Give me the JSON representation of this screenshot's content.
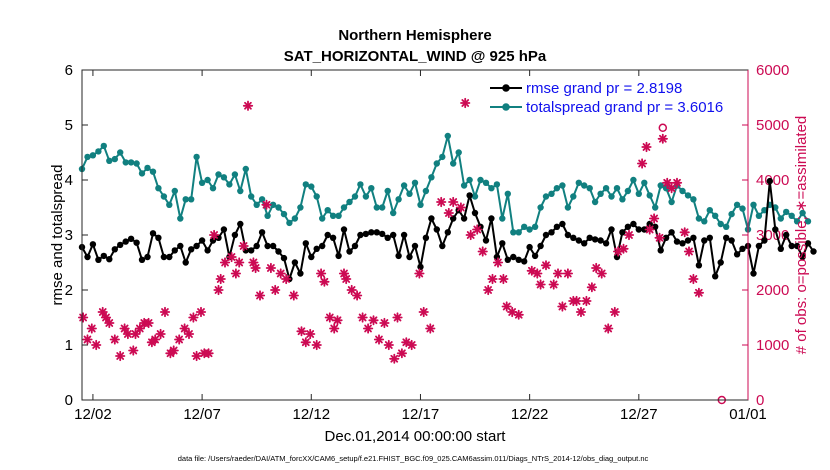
{
  "chart_data": {
    "type": "line",
    "title": "Northern Hemisphere",
    "subtitle": "SAT_HORIZONTAL_WIND @ 925 hPa",
    "xlabel": "Dec.01,2014 00:00:00 start",
    "ylabel": "rmse and totalspread",
    "y2label": "# of obs: o=possible; ∗=assimilated",
    "footnote": "data file: /Users/raeder/DAI/ATM_forcXX/CAM6_setup/f.e21.FHIST_BGC.f09_025.CAM6assim.011/Diags_NTrS_2014-12/obs_diag_output.nc",
    "xlim": [
      0.5,
      31.0
    ],
    "ylim": [
      0,
      6
    ],
    "y2lim": [
      0,
      6000
    ],
    "xticks": [
      1,
      6,
      11,
      16,
      21,
      26,
      31
    ],
    "xtick_labels": [
      "12/02",
      "12/07",
      "12/12",
      "12/17",
      "12/22",
      "12/27",
      "01/01"
    ],
    "yticks": [
      "0",
      "1",
      "2",
      "3",
      "4",
      "5",
      "6"
    ],
    "y2ticks": [
      "0",
      "1000",
      "2000",
      "3000",
      "4000",
      "5000",
      "6000"
    ],
    "legend_loc": "top-right",
    "colors": {
      "rmse": "#000000",
      "spread": "#118080",
      "obs": "#cc0a53"
    },
    "series": [
      {
        "name": "rmse grand pr = 2.8198",
        "axis": "left",
        "marker": "filled-circle",
        "t0": 0.5,
        "dt": 0.25,
        "values": [
          2.78,
          2.6,
          2.83,
          2.55,
          2.62,
          2.56,
          2.74,
          2.82,
          2.88,
          2.93,
          2.86,
          2.55,
          2.6,
          3.03,
          2.95,
          2.6,
          2.6,
          2.72,
          2.8,
          2.5,
          2.74,
          2.8,
          2.9,
          2.72,
          2.9,
          2.95,
          3.1,
          2.6,
          3.0,
          3.2,
          2.72,
          2.72,
          2.8,
          3.05,
          2.8,
          2.8,
          2.7,
          2.58,
          2.2,
          2.5,
          2.3,
          2.85,
          2.6,
          2.75,
          2.8,
          3.0,
          2.95,
          2.62,
          3.1,
          2.7,
          2.8,
          3.0,
          3.02,
          3.05,
          3.05,
          3.02,
          2.95,
          3.0,
          2.62,
          3.0,
          2.6,
          2.8,
          2.42,
          2.95,
          3.3,
          3.1,
          2.8,
          3.05,
          3.3,
          3.45,
          3.3,
          3.72,
          3.4,
          3.15,
          2.9,
          3.3,
          2.6,
          2.85,
          2.55,
          2.6,
          2.55,
          2.52,
          2.78,
          2.62,
          2.8,
          3.0,
          3.05,
          3.15,
          3.2,
          3.0,
          2.95,
          2.9,
          2.85,
          2.95,
          2.92,
          2.9,
          2.85,
          3.1,
          2.6,
          3.05,
          3.15,
          3.2,
          3.1,
          3.1,
          3.2,
          3.15,
          2.72,
          2.95,
          3.05,
          2.88,
          2.85,
          2.9,
          2.95,
          2.45,
          2.9,
          2.95,
          2.25,
          2.5,
          2.95,
          2.9,
          2.65,
          2.75,
          2.8,
          2.3,
          2.8,
          2.9,
          3.98,
          3.1,
          2.75,
          3.0,
          2.8,
          2.8,
          2.6,
          2.85,
          2.7
        ]
      },
      {
        "name": "totalspread grand pr = 3.6016",
        "axis": "left",
        "marker": "filled-circle",
        "t0": 0.5,
        "dt": 0.25,
        "values": [
          4.2,
          4.42,
          4.45,
          4.52,
          4.62,
          4.35,
          4.38,
          4.5,
          4.32,
          4.32,
          4.3,
          4.12,
          4.22,
          4.15,
          3.85,
          3.7,
          3.55,
          3.8,
          3.3,
          3.65,
          3.65,
          4.42,
          3.95,
          4.0,
          3.85,
          4.1,
          4.05,
          3.92,
          4.1,
          3.8,
          4.2,
          3.7,
          3.55,
          3.65,
          3.35,
          3.55,
          3.5,
          3.38,
          3.22,
          3.3,
          3.5,
          3.92,
          3.88,
          3.7,
          3.3,
          3.45,
          3.35,
          3.35,
          3.5,
          3.6,
          3.7,
          3.92,
          3.7,
          3.85,
          3.5,
          3.5,
          3.8,
          3.4,
          3.65,
          3.9,
          3.75,
          3.95,
          3.55,
          3.8,
          4.05,
          4.3,
          4.42,
          4.8,
          4.3,
          4.5,
          3.9,
          4.0,
          3.7,
          4.0,
          3.95,
          3.85,
          3.92,
          3.3,
          3.75,
          3.05,
          3.05,
          3.15,
          3.1,
          3.15,
          3.5,
          3.7,
          3.75,
          3.85,
          3.9,
          3.5,
          3.7,
          3.95,
          3.9,
          3.85,
          3.6,
          3.75,
          3.85,
          3.7,
          3.85,
          3.65,
          3.8,
          4.0,
          3.75,
          3.95,
          3.72,
          3.5,
          3.9,
          3.85,
          3.6,
          3.9,
          3.8,
          3.72,
          3.65,
          3.3,
          3.25,
          3.45,
          3.35,
          3.2,
          3.15,
          3.38,
          3.55,
          3.48,
          3.1,
          3.55,
          3.35,
          3.45,
          3.55,
          3.5,
          3.3,
          3.42,
          3.35,
          3.25,
          3.4,
          3.25
        ]
      },
      {
        "name": "assimilated obs count",
        "axis": "right",
        "marker": "asterisk",
        "points": [
          [
            0.55,
            1500
          ],
          [
            0.75,
            1100
          ],
          [
            0.95,
            1300
          ],
          [
            1.15,
            1000
          ],
          [
            1.45,
            1600
          ],
          [
            1.6,
            1500
          ],
          [
            1.75,
            1400
          ],
          [
            2.0,
            1100
          ],
          [
            2.25,
            800
          ],
          [
            2.45,
            1300
          ],
          [
            2.6,
            1200
          ],
          [
            2.85,
            900
          ],
          [
            2.95,
            1200
          ],
          [
            3.15,
            1300
          ],
          [
            3.35,
            1400
          ],
          [
            3.55,
            1400
          ],
          [
            3.7,
            1050
          ],
          [
            3.85,
            1100
          ],
          [
            4.1,
            1200
          ],
          [
            4.3,
            1600
          ],
          [
            4.55,
            850
          ],
          [
            4.7,
            900
          ],
          [
            4.95,
            1100
          ],
          [
            5.2,
            1300
          ],
          [
            5.4,
            1200
          ],
          [
            5.6,
            1500
          ],
          [
            5.75,
            800
          ],
          [
            5.95,
            1600
          ],
          [
            6.1,
            850
          ],
          [
            6.3,
            850
          ],
          [
            6.55,
            3000
          ],
          [
            6.75,
            2000
          ],
          [
            6.85,
            2200
          ],
          [
            7.05,
            2500
          ],
          [
            7.35,
            2600
          ],
          [
            7.55,
            2300
          ],
          [
            7.7,
            2500
          ],
          [
            7.9,
            2800
          ],
          [
            8.1,
            5350
          ],
          [
            8.35,
            2500
          ],
          [
            8.45,
            2400
          ],
          [
            8.65,
            1900
          ],
          [
            8.95,
            3550
          ],
          [
            9.15,
            2400
          ],
          [
            9.35,
            2000
          ],
          [
            9.6,
            2300
          ],
          [
            9.85,
            2200
          ],
          [
            10.2,
            1900
          ],
          [
            10.55,
            1250
          ],
          [
            10.75,
            1050
          ],
          [
            10.95,
            1200
          ],
          [
            11.25,
            1000
          ],
          [
            11.45,
            2300
          ],
          [
            11.6,
            2150
          ],
          [
            11.85,
            1500
          ],
          [
            12.05,
            1300
          ],
          [
            12.2,
            1450
          ],
          [
            12.5,
            2300
          ],
          [
            12.6,
            2200
          ],
          [
            12.85,
            2000
          ],
          [
            13.1,
            1900
          ],
          [
            13.35,
            1500
          ],
          [
            13.6,
            1300
          ],
          [
            13.85,
            1450
          ],
          [
            14.1,
            1100
          ],
          [
            14.35,
            1400
          ],
          [
            14.55,
            1000
          ],
          [
            14.8,
            750
          ],
          [
            14.95,
            1500
          ],
          [
            15.15,
            850
          ],
          [
            15.35,
            1050
          ],
          [
            15.6,
            1000
          ],
          [
            15.95,
            2300
          ],
          [
            16.15,
            1600
          ],
          [
            16.45,
            1300
          ],
          [
            16.95,
            3600
          ],
          [
            17.3,
            3400
          ],
          [
            17.5,
            3600
          ],
          [
            17.85,
            3500
          ],
          [
            18.05,
            5400
          ],
          [
            18.3,
            3000
          ],
          [
            18.6,
            3100
          ],
          [
            18.85,
            2700
          ],
          [
            19.1,
            2000
          ],
          [
            19.3,
            2200
          ],
          [
            19.55,
            2500
          ],
          [
            19.8,
            2200
          ],
          [
            19.95,
            1700
          ],
          [
            20.2,
            1600
          ],
          [
            20.5,
            1550
          ],
          [
            21.1,
            2350
          ],
          [
            21.35,
            2300
          ],
          [
            21.5,
            2100
          ],
          [
            21.75,
            2450
          ],
          [
            22.1,
            2100
          ],
          [
            22.3,
            2300
          ],
          [
            22.5,
            1700
          ],
          [
            22.75,
            2300
          ],
          [
            23.0,
            1800
          ],
          [
            23.15,
            1800
          ],
          [
            23.35,
            1600
          ],
          [
            23.6,
            1800
          ],
          [
            23.85,
            2050
          ],
          [
            24.05,
            2400
          ],
          [
            24.3,
            2300
          ],
          [
            24.6,
            1300
          ],
          [
            24.9,
            1600
          ],
          [
            25.05,
            2700
          ],
          [
            25.3,
            2750
          ],
          [
            25.55,
            3000
          ],
          [
            26.15,
            4300
          ],
          [
            26.35,
            4600
          ],
          [
            26.5,
            3100
          ],
          [
            26.7,
            3300
          ],
          [
            26.95,
            2950
          ],
          [
            27.1,
            4750
          ],
          [
            27.3,
            3950
          ],
          [
            27.5,
            3850
          ],
          [
            27.75,
            3950
          ],
          [
            28.1,
            3050
          ],
          [
            28.3,
            2700
          ],
          [
            28.5,
            2200
          ],
          [
            28.75,
            1950
          ]
        ]
      },
      {
        "name": "possible obs count",
        "axis": "right",
        "marker": "open-circle",
        "points": [
          [
            27.1,
            4950
          ],
          [
            29.8,
            0
          ]
        ]
      }
    ]
  }
}
